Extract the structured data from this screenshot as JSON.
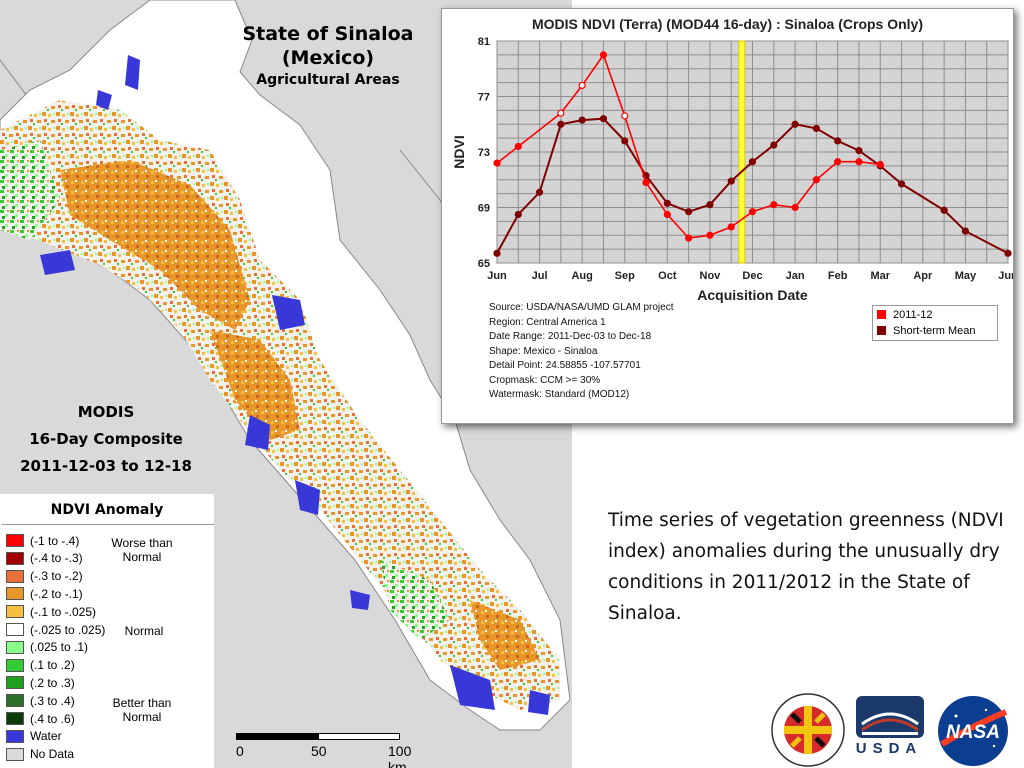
{
  "map": {
    "title": "State of Sinaloa",
    "title2": "(Mexico)",
    "subtitle": "Agricultural Areas",
    "modis_line1": "MODIS",
    "modis_line2": "16-Day Composite",
    "modis_line3": "2011-12-03 to 12-18"
  },
  "legend": {
    "title": "NDVI Anomaly",
    "items": [
      {
        "label": "(-1 to -.4)",
        "color": "#ff0000"
      },
      {
        "label": "(-.4 to -.3)",
        "color": "#a00000"
      },
      {
        "label": "(-.3 to -.2)",
        "color": "#e8703a"
      },
      {
        "label": "(-.2 to -.1)",
        "color": "#e8962a"
      },
      {
        "label": "(-.1 to -.025)",
        "color": "#f5c042"
      },
      {
        "label": "(-.025 to .025)",
        "color": "#ffffff"
      },
      {
        "label": "(.025 to .1)",
        "color": "#88ff88"
      },
      {
        "label": "(.1 to .2)",
        "color": "#33cc33"
      },
      {
        "label": "(.2 to .3)",
        "color": "#1fa01f"
      },
      {
        "label": "(.3 to .4)",
        "color": "#2a6e2a"
      },
      {
        "label": "(.4 to .6)",
        "color": "#0b3a0b"
      },
      {
        "label": "Water",
        "color": "#3838d8"
      },
      {
        "label": "No Data",
        "color": "#d9d9d9"
      }
    ],
    "group_worse": "Worse than\nNormal",
    "group_normal": "Normal",
    "group_better": "Better than\nNormal"
  },
  "scale": {
    "labels": [
      "0",
      "50",
      "100 km"
    ]
  },
  "chart_data": {
    "type": "line",
    "title": "MODIS NDVI (Terra) (MOD44 16-day) : Sinaloa (Crops Only)",
    "xlabel": "Acquisition Date",
    "ylabel": "NDVI",
    "ylim": [
      65,
      81
    ],
    "yticks": [
      65,
      69,
      73,
      77,
      81
    ],
    "xticks": [
      "Jun",
      "Jul",
      "Aug",
      "Sep",
      "Oct",
      "Nov",
      "Dec",
      "Jan",
      "Feb",
      "Mar",
      "Apr",
      "May",
      "Jun"
    ],
    "grid": true,
    "legend_position": "bottom-right",
    "highlight_period": "2011-12",
    "series": [
      {
        "name": "2011-12",
        "color": "#ff0000",
        "points": [
          {
            "x": 0.0,
            "y": 72.2,
            "hollow": false
          },
          {
            "x": 0.5,
            "y": 73.4,
            "hollow": false
          },
          {
            "x": 1.5,
            "y": 75.8,
            "hollow": true
          },
          {
            "x": 2.0,
            "y": 77.8,
            "hollow": true
          },
          {
            "x": 2.5,
            "y": 80.0,
            "hollow": false
          },
          {
            "x": 3.0,
            "y": 75.6,
            "hollow": true
          },
          {
            "x": 3.5,
            "y": 70.8,
            "hollow": false
          },
          {
            "x": 4.0,
            "y": 68.5,
            "hollow": false
          },
          {
            "x": 4.5,
            "y": 66.8,
            "hollow": false
          },
          {
            "x": 5.0,
            "y": 67.0,
            "hollow": false
          },
          {
            "x": 5.5,
            "y": 67.6,
            "hollow": false
          },
          {
            "x": 6.0,
            "y": 68.7,
            "hollow": false
          },
          {
            "x": 6.5,
            "y": 69.2,
            "hollow": false
          },
          {
            "x": 7.0,
            "y": 69.0,
            "hollow": false
          },
          {
            "x": 7.5,
            "y": 71.0,
            "hollow": false
          },
          {
            "x": 8.0,
            "y": 72.3,
            "hollow": false
          },
          {
            "x": 8.5,
            "y": 72.3,
            "hollow": false
          },
          {
            "x": 9.0,
            "y": 72.1,
            "hollow": false
          }
        ]
      },
      {
        "name": "Short-term Mean",
        "color": "#800000",
        "points": [
          {
            "x": 0.0,
            "y": 65.7
          },
          {
            "x": 0.5,
            "y": 68.5
          },
          {
            "x": 1.0,
            "y": 70.1
          },
          {
            "x": 1.5,
            "y": 75.0
          },
          {
            "x": 2.0,
            "y": 75.3
          },
          {
            "x": 2.5,
            "y": 75.4
          },
          {
            "x": 3.0,
            "y": 73.8
          },
          {
            "x": 3.5,
            "y": 71.3
          },
          {
            "x": 4.0,
            "y": 69.3
          },
          {
            "x": 4.5,
            "y": 68.7
          },
          {
            "x": 5.0,
            "y": 69.2
          },
          {
            "x": 5.5,
            "y": 70.9
          },
          {
            "x": 6.0,
            "y": 72.3
          },
          {
            "x": 6.5,
            "y": 73.5
          },
          {
            "x": 7.0,
            "y": 75.0
          },
          {
            "x": 7.5,
            "y": 74.7
          },
          {
            "x": 8.0,
            "y": 73.8
          },
          {
            "x": 8.5,
            "y": 73.1
          },
          {
            "x": 9.0,
            "y": 72.0
          },
          {
            "x": 9.5,
            "y": 70.7
          },
          {
            "x": 10.5,
            "y": 68.8
          },
          {
            "x": 11.0,
            "y": 67.3
          },
          {
            "x": 12.0,
            "y": 65.7
          }
        ]
      }
    ]
  },
  "chart_meta": [
    "Source: USDA/NASA/UMD GLAM project",
    "Region: Central America 1",
    "Date Range: 2011-Dec-03 to Dec-18",
    "Shape: Mexico - Sinaloa",
    "Detail Point: 24.58855 -107.57701",
    "Cropmask: CCM >= 30%",
    "Watermask: Standard (MOD12)"
  ],
  "caption": "Time series of vegetation greenness (NDVI index) anomalies during the unusually dry conditions in 2011/2012 in the State of Sinaloa.",
  "logos": {
    "university_icon": "university-of-maryland-seal",
    "usda_icon": "usda-fas-logo",
    "usda_text": "USDA",
    "nasa_icon": "nasa-meatball",
    "nasa_text": "NASA"
  }
}
